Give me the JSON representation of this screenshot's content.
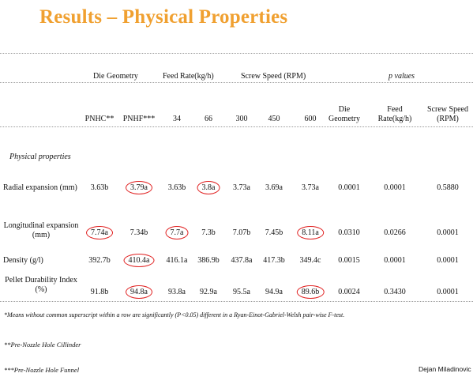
{
  "title": "Results – Physical Properties",
  "groups": {
    "die_geometry": "Die Geometry",
    "feed_rate": "Feed Rate(kg/h)",
    "screw_speed": "Screw Speed (RPM)",
    "p_values": "p values"
  },
  "subheaders": [
    "PNHC**",
    "PNHF***",
    "34",
    "66",
    "300",
    "450",
    "600"
  ],
  "p_subheaders": {
    "die": [
      "Die",
      "Geometry"
    ],
    "feed": [
      "Feed",
      "Rate(kg/h)"
    ],
    "screw": [
      "Screw Speed",
      "(RPM)"
    ]
  },
  "section_label": "Physical properties",
  "rows": [
    {
      "label": [
        "Radial expansion (mm)"
      ],
      "values": [
        "3.63b",
        "3.79a",
        "3.63b",
        "3.8a",
        "3.73a",
        "3.69a",
        "3.73a"
      ],
      "circled": [
        1,
        3
      ],
      "p": [
        "0.0001",
        "0.0001",
        "0.5880"
      ]
    },
    {
      "label": [
        "Longitudinal expansion",
        "(mm)"
      ],
      "values": [
        "7.74a",
        "7.34b",
        "7.7a",
        "7.3b",
        "7.07b",
        "7.45b",
        "8.11a"
      ],
      "circled": [
        0,
        2,
        6
      ],
      "p": [
        "0.0310",
        "0.0266",
        "0.0001"
      ]
    },
    {
      "label": [
        "Density (g/l)"
      ],
      "values": [
        "392.7b",
        "410.4a",
        "416.1a",
        "386.9b",
        "437.8a",
        "417.3b",
        "349.4c"
      ],
      "circled": [
        1
      ],
      "p": [
        "0.0015",
        "0.0001",
        "0.0001"
      ]
    },
    {
      "label": [
        "Pellet Durability Index",
        "(%)"
      ],
      "values": [
        "91.8b",
        "94.8a",
        "93.8a",
        "92.9a",
        "95.5a",
        "94.9a",
        "89.6b"
      ],
      "circled": [
        1,
        6
      ],
      "p": [
        "0.0024",
        "0.3430",
        "0.0001"
      ]
    }
  ],
  "footnotes": [
    "*Means without common superscript within a row are significantly (P<0.05) different in a Ryan-Einot-Gabriel-Welsh pair-wise F-test.",
    "**Pre-Nozzle Hole Cillinder",
    "***Pre-Nozzle Hole Funnel"
  ],
  "author": "Dejan Miladinovic",
  "accent_color": "#f0a030",
  "circle_color": "#e02020"
}
